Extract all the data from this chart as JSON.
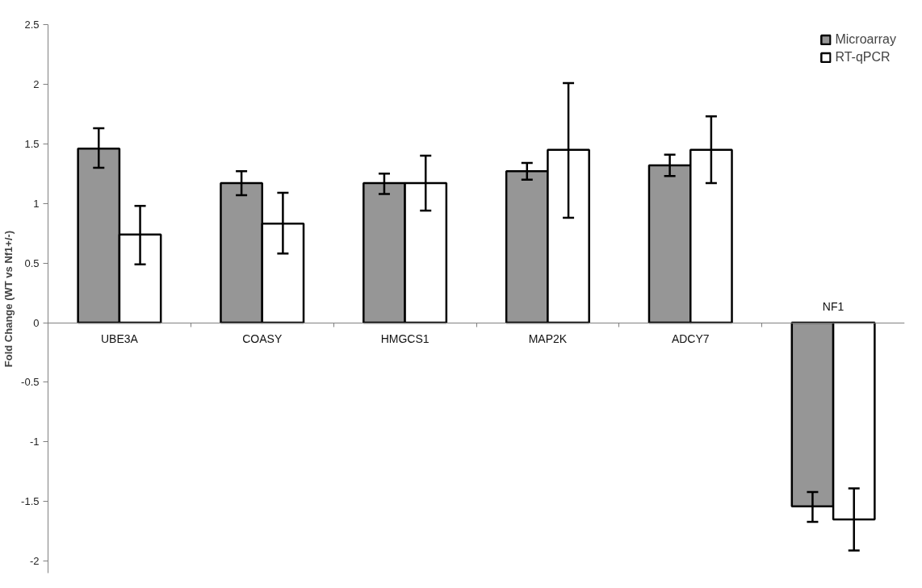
{
  "chart_data": {
    "type": "bar",
    "categories": [
      "UBE3A",
      "COASY",
      "HMGCS1",
      "MAP2K",
      "ADCY7",
      "NF1"
    ],
    "ylabel": "Fold Change (WT vs Nf1+/-)",
    "series": [
      {
        "name": "Microarray",
        "color": "#969696",
        "values": [
          1.46,
          1.17,
          1.17,
          1.27,
          1.32,
          -1.54
        ],
        "errors": [
          [
            1.3,
            1.63
          ],
          [
            1.07,
            1.27
          ],
          [
            1.08,
            1.25
          ],
          [
            1.2,
            1.34
          ],
          [
            1.23,
            1.41
          ],
          [
            -1.67,
            -1.42
          ]
        ]
      },
      {
        "name": "RT-qPCR",
        "color": "#ffffff",
        "values": [
          0.74,
          0.83,
          1.17,
          1.45,
          1.45,
          -1.65
        ],
        "errors": [
          [
            0.49,
            0.98
          ],
          [
            0.58,
            1.09
          ],
          [
            0.94,
            1.4
          ],
          [
            0.88,
            2.01
          ],
          [
            1.17,
            1.73
          ],
          [
            -1.91,
            -1.39
          ]
        ]
      }
    ],
    "ylim": [
      -2.1,
      2.5
    ],
    "yticks": [
      -2,
      -1.5,
      -1,
      -0.5,
      0,
      0.5,
      1,
      1.5,
      2,
      2.5
    ],
    "grid": false,
    "legend": "top right"
  }
}
